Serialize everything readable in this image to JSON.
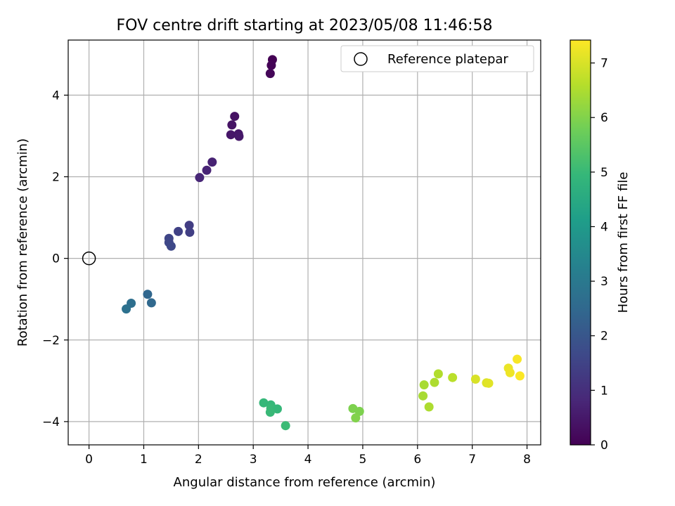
{
  "chart_data": {
    "type": "scatter",
    "title": "FOV centre drift starting at 2023/05/08 11:46:58",
    "xlabel": "Angular distance from reference (arcmin)",
    "ylabel": "Rotation from reference (arcmin)",
    "xlim": [
      -0.38,
      8.25
    ],
    "ylim": [
      -4.57,
      5.35
    ],
    "xticks": [
      0,
      1,
      2,
      3,
      4,
      5,
      6,
      7,
      8
    ],
    "yticks": [
      -4,
      -2,
      0,
      2,
      4
    ],
    "xtick_labels": [
      "0",
      "1",
      "2",
      "3",
      "4",
      "5",
      "6",
      "7",
      "8"
    ],
    "ytick_labels": [
      "−4",
      "−2",
      "0",
      "2",
      "4"
    ],
    "grid": true,
    "legend": {
      "position": "top-right",
      "entries": [
        "Reference platepar"
      ]
    },
    "reference_point": {
      "x": 0,
      "y": 0
    },
    "colorbar": {
      "label": "Hours from first FF file",
      "range": [
        0,
        7.42
      ],
      "ticks": [
        0,
        1,
        2,
        3,
        4,
        5,
        6,
        7
      ],
      "tick_labels": [
        "0",
        "1",
        "2",
        "3",
        "4",
        "5",
        "6",
        "7"
      ],
      "colormap": "viridis"
    },
    "points": [
      {
        "x": 3.35,
        "y": 4.87,
        "hours": 0.0
      },
      {
        "x": 3.33,
        "y": 4.73,
        "hours": 0.05
      },
      {
        "x": 3.31,
        "y": 4.53,
        "hours": 0.1
      },
      {
        "x": 2.66,
        "y": 3.48,
        "hours": 0.35
      },
      {
        "x": 2.61,
        "y": 3.27,
        "hours": 0.4
      },
      {
        "x": 2.59,
        "y": 3.03,
        "hours": 0.45
      },
      {
        "x": 2.73,
        "y": 3.05,
        "hours": 0.45
      },
      {
        "x": 2.74,
        "y": 2.99,
        "hours": 0.48
      },
      {
        "x": 2.25,
        "y": 2.36,
        "hours": 0.7
      },
      {
        "x": 2.15,
        "y": 2.16,
        "hours": 0.75
      },
      {
        "x": 2.02,
        "y": 1.98,
        "hours": 0.8
      },
      {
        "x": 1.83,
        "y": 0.81,
        "hours": 1.35
      },
      {
        "x": 1.84,
        "y": 0.64,
        "hours": 1.4
      },
      {
        "x": 1.63,
        "y": 0.66,
        "hours": 1.45
      },
      {
        "x": 1.46,
        "y": 0.49,
        "hours": 1.55
      },
      {
        "x": 1.46,
        "y": 0.39,
        "hours": 1.6
      },
      {
        "x": 1.5,
        "y": 0.3,
        "hours": 1.62
      },
      {
        "x": 1.07,
        "y": -0.88,
        "hours": 2.45
      },
      {
        "x": 1.14,
        "y": -1.09,
        "hours": 2.5
      },
      {
        "x": 0.77,
        "y": -1.1,
        "hours": 2.7
      },
      {
        "x": 0.68,
        "y": -1.24,
        "hours": 2.75
      },
      {
        "x": 3.19,
        "y": -3.54,
        "hours": 4.95
      },
      {
        "x": 3.32,
        "y": -3.59,
        "hours": 4.95
      },
      {
        "x": 3.32,
        "y": -3.68,
        "hours": 5.0
      },
      {
        "x": 3.44,
        "y": -3.69,
        "hours": 4.95
      },
      {
        "x": 3.31,
        "y": -3.77,
        "hours": 5.0
      },
      {
        "x": 3.59,
        "y": -4.1,
        "hours": 5.05
      },
      {
        "x": 4.82,
        "y": -3.68,
        "hours": 5.95
      },
      {
        "x": 4.94,
        "y": -3.75,
        "hours": 5.95
      },
      {
        "x": 4.87,
        "y": -3.91,
        "hours": 6.0
      },
      {
        "x": 6.12,
        "y": -3.1,
        "hours": 6.45
      },
      {
        "x": 6.1,
        "y": -3.37,
        "hours": 6.45
      },
      {
        "x": 6.21,
        "y": -3.64,
        "hours": 6.5
      },
      {
        "x": 6.31,
        "y": -3.04,
        "hours": 6.5
      },
      {
        "x": 6.38,
        "y": -2.83,
        "hours": 6.55
      },
      {
        "x": 6.64,
        "y": -2.92,
        "hours": 6.65
      },
      {
        "x": 7.06,
        "y": -2.96,
        "hours": 7.0
      },
      {
        "x": 7.26,
        "y": -3.05,
        "hours": 7.05
      },
      {
        "x": 7.3,
        "y": -3.06,
        "hours": 7.1
      },
      {
        "x": 7.66,
        "y": -2.69,
        "hours": 7.2
      },
      {
        "x": 7.69,
        "y": -2.8,
        "hours": 7.25
      },
      {
        "x": 7.82,
        "y": -2.47,
        "hours": 7.35
      },
      {
        "x": 7.87,
        "y": -2.88,
        "hours": 7.4
      }
    ]
  },
  "colors": {
    "viridis": [
      "#440154",
      "#482878",
      "#3e4989",
      "#31688e",
      "#26828e",
      "#1f9e89",
      "#35b779",
      "#6ece58",
      "#b5de2b",
      "#fde725"
    ],
    "grid": "#b0b0b0",
    "axis": "#000000"
  }
}
